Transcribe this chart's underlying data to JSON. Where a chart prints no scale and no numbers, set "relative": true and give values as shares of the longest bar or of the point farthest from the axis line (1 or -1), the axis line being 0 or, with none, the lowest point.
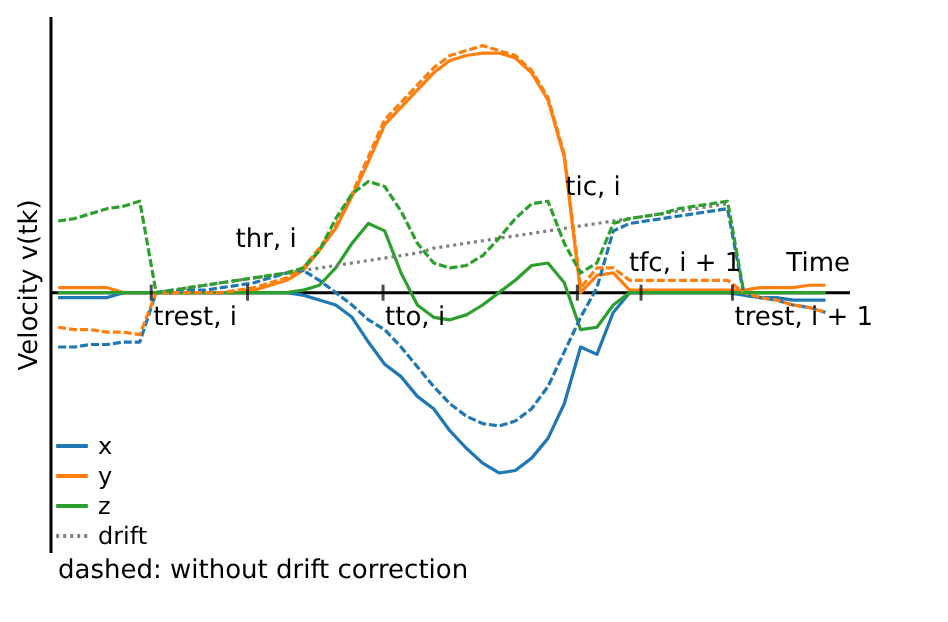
{
  "chart_data": {
    "type": "line",
    "relative": true,
    "xlabel": "Time",
    "ylabel": "Velocity v(tk)",
    "categories": [
      null,
      null,
      null,
      null,
      null,
      null,
      null,
      null,
      null,
      null,
      null,
      null,
      null,
      null,
      null,
      null,
      null,
      null,
      null,
      null,
      null,
      null,
      null,
      null,
      null,
      null,
      null,
      null,
      null,
      null,
      null,
      null,
      null,
      null,
      null,
      null,
      null,
      null,
      null,
      null,
      null,
      null,
      null,
      null,
      null,
      null,
      null,
      null
    ],
    "series": [
      {
        "name": "x",
        "color": "#1f77b4",
        "line_style": "solid",
        "values": [
          -0.02,
          -0.02,
          -0.02,
          -0.02,
          0,
          0,
          0,
          0,
          0,
          0,
          0,
          0,
          0,
          0,
          0,
          -0.01,
          -0.03,
          -0.05,
          -0.1,
          -0.2,
          -0.29,
          -0.34,
          -0.42,
          -0.47,
          -0.56,
          -0.63,
          -0.69,
          -0.73,
          -0.72,
          -0.67,
          -0.59,
          -0.45,
          -0.22,
          -0.25,
          -0.08,
          0,
          0,
          0,
          0,
          0,
          0,
          0,
          -0.01,
          -0.02,
          -0.02,
          -0.03,
          -0.03,
          -0.03
        ]
      },
      {
        "name": "y",
        "color": "#ff7f0e",
        "line_style": "solid",
        "values": [
          0.02,
          0.02,
          0.02,
          0.02,
          0,
          0,
          0,
          0,
          0,
          0,
          0,
          0,
          0.01,
          0.03,
          0.05,
          0.09,
          0.17,
          0.26,
          0.39,
          0.53,
          0.68,
          0.75,
          0.82,
          0.89,
          0.94,
          0.96,
          0.97,
          0.97,
          0.95,
          0.89,
          0.78,
          0.55,
          0,
          0.07,
          0.08,
          0.01,
          0.01,
          0.01,
          0.01,
          0.01,
          0.01,
          0.01,
          0.01,
          0.02,
          0.02,
          0.02,
          0.03,
          0.03
        ]
      },
      {
        "name": "z",
        "color": "#2ca02c",
        "line_style": "solid",
        "values": [
          0,
          0,
          0,
          0,
          0,
          0,
          0,
          0,
          0,
          0,
          0,
          0,
          0,
          0,
          0,
          0.01,
          0.03,
          0.1,
          0.2,
          0.28,
          0.25,
          0.08,
          -0.05,
          -0.1,
          -0.11,
          -0.09,
          -0.05,
          0,
          0.05,
          0.11,
          0.12,
          0.04,
          -0.15,
          -0.14,
          -0.05,
          0,
          0,
          0,
          0,
          0,
          0,
          0,
          0,
          0,
          0,
          0,
          0,
          0
        ]
      },
      {
        "name": "drift",
        "color": "#7f7f7f",
        "line_style": "dotted",
        "values": [
          null,
          null,
          null,
          null,
          null,
          null,
          0,
          0.01,
          0.02,
          0.03,
          0.04,
          0.05,
          0.06,
          0.07,
          0.08,
          0.09,
          0.1,
          0.11,
          0.12,
          0.13,
          0.14,
          0.15,
          0.16,
          0.18,
          0.19,
          0.2,
          0.21,
          0.22,
          0.23,
          0.24,
          0.25,
          0.26,
          0.27,
          0.28,
          0.29,
          0.3,
          0.31,
          0.32,
          0.33,
          0.34,
          0.35,
          0.36,
          null,
          null,
          null,
          null,
          null,
          null
        ]
      },
      {
        "color": "#1f77b4",
        "line_style": "dashed",
        "values": [
          -0.22,
          -0.22,
          -0.21,
          -0.21,
          -0.2,
          -0.2,
          0,
          0.005,
          0.01,
          0.01,
          0.02,
          0.03,
          0.04,
          0.06,
          0.08,
          0.09,
          0.05,
          0,
          -0.05,
          -0.11,
          -0.15,
          -0.22,
          -0.3,
          -0.38,
          -0.45,
          -0.5,
          -0.53,
          -0.54,
          -0.52,
          -0.47,
          -0.38,
          -0.24,
          -0.1,
          0.02,
          0.25,
          0.28,
          0.29,
          0.3,
          0.31,
          0.32,
          0.33,
          0.34,
          -0.01,
          -0.02,
          -0.03,
          -0.05,
          -0.06,
          -0.08
        ]
      },
      {
        "color": "#ff7f0e",
        "line_style": "dashed",
        "values": [
          -0.14,
          -0.15,
          -0.15,
          -0.16,
          -0.16,
          -0.17,
          0,
          0,
          0,
          0,
          0,
          0.01,
          0.02,
          0.04,
          0.06,
          0.1,
          0.18,
          0.27,
          0.4,
          0.55,
          0.7,
          0.77,
          0.84,
          0.91,
          0.96,
          0.98,
          1,
          0.98,
          0.96,
          0.9,
          0.79,
          0.56,
          0.02,
          0.1,
          0.1,
          0.05,
          0.05,
          0.05,
          0.05,
          0.05,
          0.05,
          0.05,
          0,
          -0.02,
          -0.03,
          -0.05,
          -0.06,
          -0.08
        ]
      },
      {
        "color": "#2ca02c",
        "line_style": "dashed",
        "values": [
          0.29,
          0.3,
          0.32,
          0.34,
          0.35,
          0.37,
          0,
          0.01,
          0.02,
          0.03,
          0.04,
          0.05,
          0.06,
          0.07,
          0.08,
          0.1,
          0.17,
          0.3,
          0.4,
          0.45,
          0.43,
          0.33,
          0.2,
          0.12,
          0.1,
          0.11,
          0.15,
          0.22,
          0.3,
          0.36,
          0.37,
          0.2,
          0.08,
          0.12,
          0.28,
          0.3,
          0.31,
          0.32,
          0.34,
          0.35,
          0.36,
          0.37,
          0,
          0,
          0,
          0,
          0,
          0
        ]
      }
    ],
    "annotations": [
      "trest, i",
      "thr, i",
      "tto, i",
      "tic, i",
      "tfc, i + 1",
      "trest, i + 1",
      "dashed: without drift correction"
    ],
    "legend": "bottom left"
  }
}
